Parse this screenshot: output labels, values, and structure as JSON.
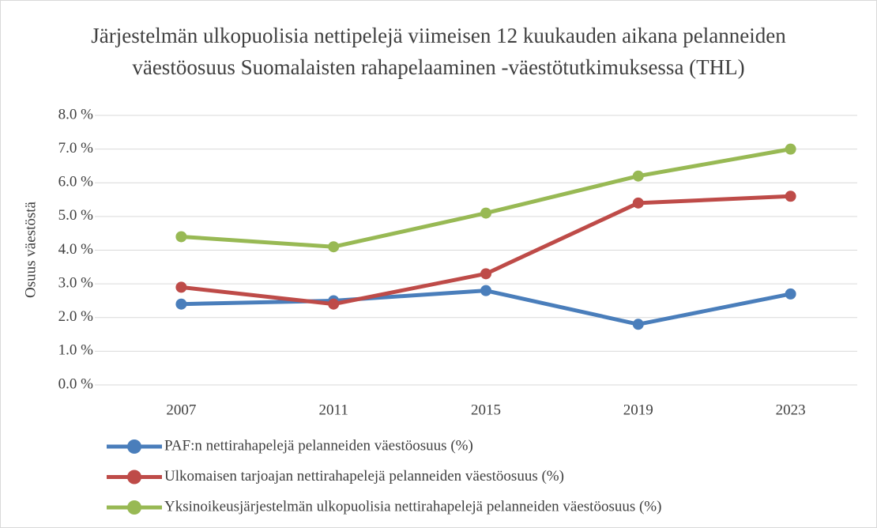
{
  "chart_data": {
    "type": "line",
    "title": [
      "Järjestelmän ulkopuolisia nettipelejä viimeisen 12 kuukauden aikana pelanneiden",
      "väestöosuus Suomalaisten rahapelaaminen -väestötutkimuksessa (THL)"
    ],
    "y_label": "Osuus väestöstä",
    "categories": [
      "2007",
      "2011",
      "2015",
      "2019",
      "2023"
    ],
    "series": [
      {
        "name": "PAF:n nettirahapelejä pelanneiden väestöosuus (%)",
        "color": "#4a7ebb",
        "values": [
          2.4,
          2.5,
          2.8,
          1.8,
          2.7
        ]
      },
      {
        "name": "Ulkomaisen tarjoajan nettirahapelejä pelanneiden väestöosuus (%)",
        "color": "#be4b48",
        "values": [
          2.9,
          2.4,
          3.3,
          5.4,
          5.6
        ]
      },
      {
        "name": "Yksinoikeusjärjestelmän ulkopuolisia nettirahapelejä pelanneiden väestöosuus (%)",
        "color": "#98b954",
        "values": [
          4.4,
          4.1,
          5.1,
          6.2,
          7.0
        ]
      }
    ],
    "ylim": [
      0,
      8
    ],
    "yticks": [
      {
        "value": 0,
        "label": "0.0 %"
      },
      {
        "value": 1,
        "label": "1.0 %"
      },
      {
        "value": 2,
        "label": "2.0 %"
      },
      {
        "value": 3,
        "label": "3.0 %"
      },
      {
        "value": 4,
        "label": "4.0 %"
      },
      {
        "value": 5,
        "label": "5.0 %"
      },
      {
        "value": 6,
        "label": "6.0 %"
      },
      {
        "value": 7,
        "label": "7.0 %"
      },
      {
        "value": 8,
        "label": "8.0 %"
      }
    ],
    "grid": true,
    "legend": "bottom"
  }
}
